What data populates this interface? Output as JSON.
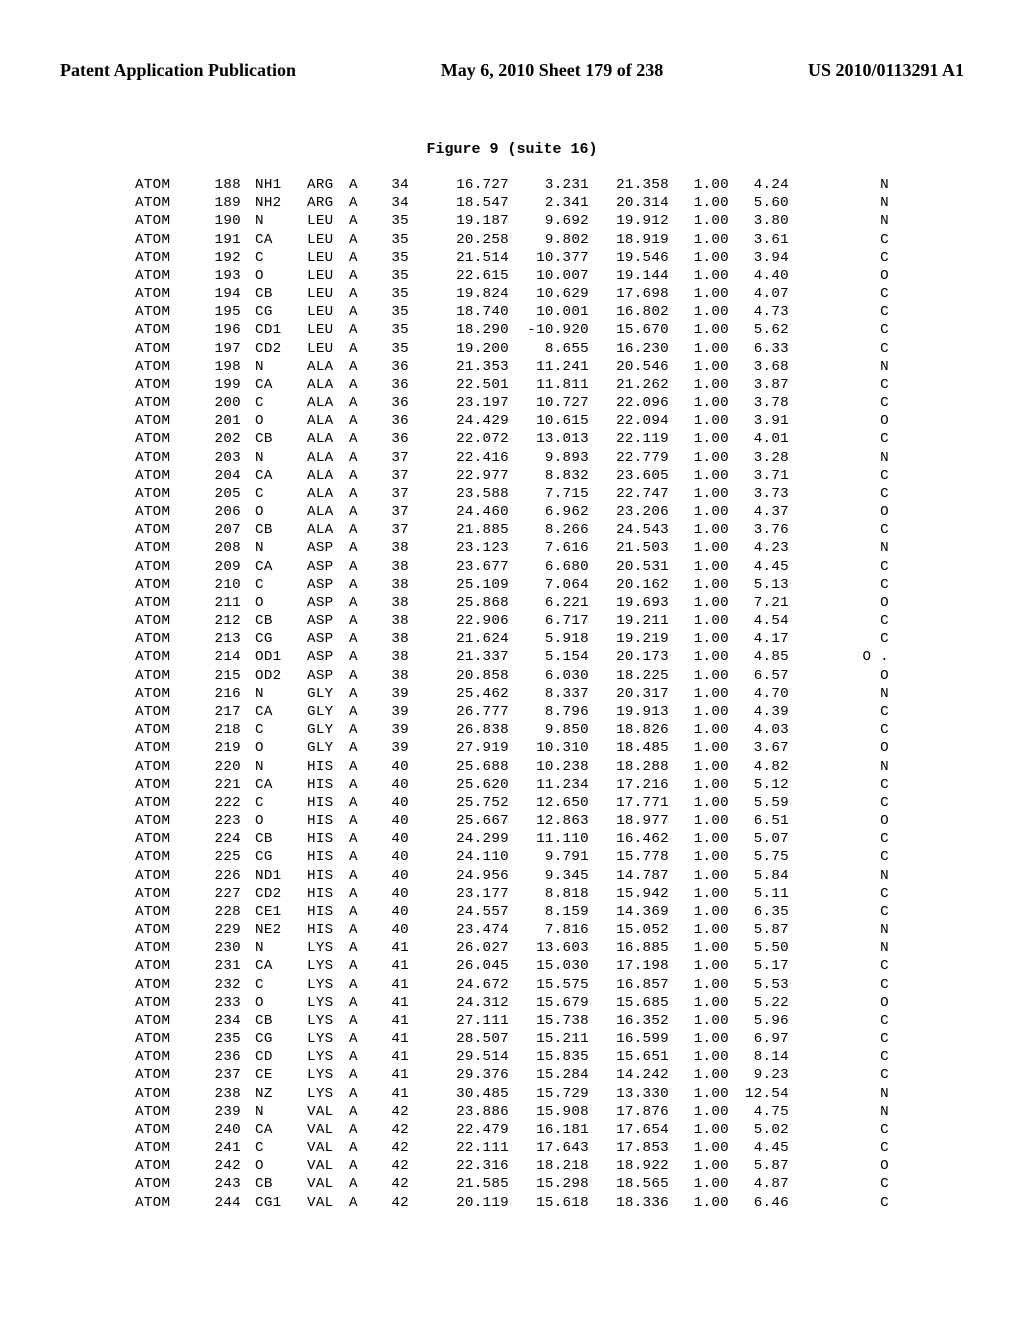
{
  "header": {
    "left": "Patent Application Publication",
    "center": "May 6, 2010  Sheet 179 of 238",
    "right": "US 2010/0113291 A1"
  },
  "figure_title": "Figure 9 (suite 16)",
  "columns": [
    "rec",
    "ser",
    "atom",
    "res",
    "chain",
    "seq",
    "x",
    "y",
    "z",
    "occ",
    "temp",
    "elem"
  ],
  "style": {
    "font_family_body": "Times New Roman",
    "font_family_data": "Courier New",
    "header_fontsize": 18,
    "title_fontsize": 15,
    "data_fontsize": 14.2,
    "line_height": 1.28,
    "background_color": "#ffffff",
    "text_color": "#000000"
  },
  "atoms": [
    [
      "ATOM",
      "188",
      "NH1",
      "ARG",
      "A",
      "34",
      "16.727",
      "3.231",
      "21.358",
      "1.00",
      "4.24",
      "N"
    ],
    [
      "ATOM",
      "189",
      "NH2",
      "ARG",
      "A",
      "34",
      "18.547",
      "2.341",
      "20.314",
      "1.00",
      "5.60",
      "N"
    ],
    [
      "ATOM",
      "190",
      "N",
      "LEU",
      "A",
      "35",
      "19.187",
      "9.692",
      "19.912",
      "1.00",
      "3.80",
      "N"
    ],
    [
      "ATOM",
      "191",
      "CA",
      "LEU",
      "A",
      "35",
      "20.258",
      "9.802",
      "18.919",
      "1.00",
      "3.61",
      "C"
    ],
    [
      "ATOM",
      "192",
      "C",
      "LEU",
      "A",
      "35",
      "21.514",
      "10.377",
      "19.546",
      "1.00",
      "3.94",
      "C"
    ],
    [
      "ATOM",
      "193",
      "O",
      "LEU",
      "A",
      "35",
      "22.615",
      "10.007",
      "19.144",
      "1.00",
      "4.40",
      "O"
    ],
    [
      "ATOM",
      "194",
      "CB",
      "LEU",
      "A",
      "35",
      "19.824",
      "10.629",
      "17.698",
      "1.00",
      "4.07",
      "C"
    ],
    [
      "ATOM",
      "195",
      "CG",
      "LEU",
      "A",
      "35",
      "18.740",
      "10.001",
      "16.802",
      "1.00",
      "4.73",
      "C"
    ],
    [
      "ATOM",
      "196",
      "CD1",
      "LEU",
      "A",
      "35",
      "18.290",
      "-10.920",
      "15.670",
      "1.00",
      "5.62",
      "C"
    ],
    [
      "ATOM",
      "197",
      "CD2",
      "LEU",
      "A",
      "35",
      "19.200",
      "8.655",
      "16.230",
      "1.00",
      "6.33",
      "C"
    ],
    [
      "ATOM",
      "198",
      "N",
      "ALA",
      "A",
      "36",
      "21.353",
      "11.241",
      "20.546",
      "1.00",
      "3.68",
      "N"
    ],
    [
      "ATOM",
      "199",
      "CA",
      "ALA",
      "A",
      "36",
      "22.501",
      "11.811",
      "21.262",
      "1.00",
      "3.87",
      "C"
    ],
    [
      "ATOM",
      "200",
      "C",
      "ALA",
      "A",
      "36",
      "23.197",
      "10.727",
      "22.096",
      "1.00",
      "3.78",
      "C"
    ],
    [
      "ATOM",
      "201",
      "O",
      "ALA",
      "A",
      "36",
      "24.429",
      "10.615",
      "22.094",
      "1.00",
      "3.91",
      "O"
    ],
    [
      "ATOM",
      "202",
      "CB",
      "ALA",
      "A",
      "36",
      "22.072",
      "13.013",
      "22.119",
      "1.00",
      "4.01",
      "C"
    ],
    [
      "ATOM",
      "203",
      "N",
      "ALA",
      "A",
      "37",
      "22.416",
      "9.893",
      "22.779",
      "1.00",
      "3.28",
      "N"
    ],
    [
      "ATOM",
      "204",
      "CA",
      "ALA",
      "A",
      "37",
      "22.977",
      "8.832",
      "23.605",
      "1.00",
      "3.71",
      "C"
    ],
    [
      "ATOM",
      "205",
      "C",
      "ALA",
      "A",
      "37",
      "23.588",
      "7.715",
      "22.747",
      "1.00",
      "3.73",
      "C"
    ],
    [
      "ATOM",
      "206",
      "O",
      "ALA",
      "A",
      "37",
      "24.460",
      "6.962",
      "23.206",
      "1.00",
      "4.37",
      "O"
    ],
    [
      "ATOM",
      "207",
      "CB",
      "ALA",
      "A",
      "37",
      "21.885",
      "8.266",
      "24.543",
      "1.00",
      "3.76",
      "C"
    ],
    [
      "ATOM",
      "208",
      "N",
      "ASP",
      "A",
      "38",
      "23.123",
      "7.616",
      "21.503",
      "1.00",
      "4.23",
      "N"
    ],
    [
      "ATOM",
      "209",
      "CA",
      "ASP",
      "A",
      "38",
      "23.677",
      "6.680",
      "20.531",
      "1.00",
      "4.45",
      "C"
    ],
    [
      "ATOM",
      "210",
      "C",
      "ASP",
      "A",
      "38",
      "25.109",
      "7.064",
      "20.162",
      "1.00",
      "5.13",
      "C"
    ],
    [
      "ATOM",
      "211",
      "O",
      "ASP",
      "A",
      "38",
      "25.868",
      "6.221",
      "19.693",
      "1.00",
      "7.21",
      "O"
    ],
    [
      "ATOM",
      "212",
      "CB",
      "ASP",
      "A",
      "38",
      "22.906",
      "6.717",
      "19.211",
      "1.00",
      "4.54",
      "C"
    ],
    [
      "ATOM",
      "213",
      "CG",
      "ASP",
      "A",
      "38",
      "21.624",
      "5.918",
      "19.219",
      "1.00",
      "4.17",
      "C"
    ],
    [
      "ATOM",
      "214",
      "OD1",
      "ASP",
      "A",
      "38",
      "21.337",
      "5.154",
      "20.173",
      "1.00",
      "4.85",
      "O ."
    ],
    [
      "ATOM",
      "215",
      "OD2",
      "ASP",
      "A",
      "38",
      "20.858",
      "6.030",
      "18.225",
      "1.00",
      "6.57",
      "O"
    ],
    [
      "ATOM",
      "216",
      "N",
      "GLY",
      "A",
      "39",
      "25.462",
      "8.337",
      "20.317",
      "1.00",
      "4.70",
      "N"
    ],
    [
      "ATOM",
      "217",
      "CA",
      "GLY",
      "A",
      "39",
      "26.777",
      "8.796",
      "19.913",
      "1.00",
      "4.39",
      "C"
    ],
    [
      "ATOM",
      "218",
      "C",
      "GLY",
      "A",
      "39",
      "26.838",
      "9.850",
      "18.826",
      "1.00",
      "4.03",
      "C"
    ],
    [
      "ATOM",
      "219",
      "O",
      "GLY",
      "A",
      "39",
      "27.919",
      "10.310",
      "18.485",
      "1.00",
      "3.67",
      "O"
    ],
    [
      "ATOM",
      "220",
      "N",
      "HIS",
      "A",
      "40",
      "25.688",
      "10.238",
      "18.288",
      "1.00",
      "4.82",
      "N"
    ],
    [
      "ATOM",
      "221",
      "CA",
      "HIS",
      "A",
      "40",
      "25.620",
      "11.234",
      "17.216",
      "1.00",
      "5.12",
      "C"
    ],
    [
      "ATOM",
      "222",
      "C",
      "HIS",
      "A",
      "40",
      "25.752",
      "12.650",
      "17.771",
      "1.00",
      "5.59",
      "C"
    ],
    [
      "ATOM",
      "223",
      "O",
      "HIS",
      "A",
      "40",
      "25.667",
      "12.863",
      "18.977",
      "1.00",
      "6.51",
      "O"
    ],
    [
      "ATOM",
      "224",
      "CB",
      "HIS",
      "A",
      "40",
      "24.299",
      "11.110",
      "16.462",
      "1.00",
      "5.07",
      "C"
    ],
    [
      "ATOM",
      "225",
      "CG",
      "HIS",
      "A",
      "40",
      "24.110",
      "9.791",
      "15.778",
      "1.00",
      "5.75",
      "C"
    ],
    [
      "ATOM",
      "226",
      "ND1",
      "HIS",
      "A",
      "40",
      "24.956",
      "9.345",
      "14.787",
      "1.00",
      "5.84",
      "N"
    ],
    [
      "ATOM",
      "227",
      "CD2",
      "HIS",
      "A",
      "40",
      "23.177",
      "8.818",
      "15.942",
      "1.00",
      "5.11",
      "C"
    ],
    [
      "ATOM",
      "228",
      "CE1",
      "HIS",
      "A",
      "40",
      "24.557",
      "8.159",
      "14.369",
      "1.00",
      "6.35",
      "C"
    ],
    [
      "ATOM",
      "229",
      "NE2",
      "HIS",
      "A",
      "40",
      "23.474",
      "7.816",
      "15.052",
      "1.00",
      "5.87",
      "N"
    ],
    [
      "ATOM",
      "230",
      "N",
      "LYS",
      "A",
      "41",
      "26.027",
      "13.603",
      "16.885",
      "1.00",
      "5.50",
      "N"
    ],
    [
      "ATOM",
      "231",
      "CA",
      "LYS",
      "A",
      "41",
      "26.045",
      "15.030",
      "17.198",
      "1.00",
      "5.17",
      "C"
    ],
    [
      "ATOM",
      "232",
      "C",
      "LYS",
      "A",
      "41",
      "24.672",
      "15.575",
      "16.857",
      "1.00",
      "5.53",
      "C"
    ],
    [
      "ATOM",
      "233",
      "O",
      "LYS",
      "A",
      "41",
      "24.312",
      "15.679",
      "15.685",
      "1.00",
      "5.22",
      "O"
    ],
    [
      "ATOM",
      "234",
      "CB",
      "LYS",
      "A",
      "41",
      "27.111",
      "15.738",
      "16.352",
      "1.00",
      "5.96",
      "C"
    ],
    [
      "ATOM",
      "235",
      "CG",
      "LYS",
      "A",
      "41",
      "28.507",
      "15.211",
      "16.599",
      "1.00",
      "6.97",
      "C"
    ],
    [
      "ATOM",
      "236",
      "CD",
      "LYS",
      "A",
      "41",
      "29.514",
      "15.835",
      "15.651",
      "1.00",
      "8.14",
      "C"
    ],
    [
      "ATOM",
      "237",
      "CE",
      "LYS",
      "A",
      "41",
      "29.376",
      "15.284",
      "14.242",
      "1.00",
      "9.23",
      "C"
    ],
    [
      "ATOM",
      "238",
      "NZ",
      "LYS",
      "A",
      "41",
      "30.485",
      "15.729",
      "13.330",
      "1.00",
      "12.54",
      "N"
    ],
    [
      "ATOM",
      "239",
      "N",
      "VAL",
      "A",
      "42",
      "23.886",
      "15.908",
      "17.876",
      "1.00",
      "4.75",
      "N"
    ],
    [
      "ATOM",
      "240",
      "CA",
      "VAL",
      "A",
      "42",
      "22.479",
      "16.181",
      "17.654",
      "1.00",
      "5.02",
      "C"
    ],
    [
      "ATOM",
      "241",
      "C",
      "VAL",
      "A",
      "42",
      "22.111",
      "17.643",
      "17.853",
      "1.00",
      "4.45",
      "C"
    ],
    [
      "ATOM",
      "242",
      "O",
      "VAL",
      "A",
      "42",
      "22.316",
      "18.218",
      "18.922",
      "1.00",
      "5.87",
      "O"
    ],
    [
      "ATOM",
      "243",
      "CB",
      "VAL",
      "A",
      "42",
      "21.585",
      "15.298",
      "18.565",
      "1.00",
      "4.87",
      "C"
    ],
    [
      "ATOM",
      "244",
      "CG1",
      "VAL",
      "A",
      "42",
      "20.119",
      "15.618",
      "18.336",
      "1.00",
      "6.46",
      "C"
    ]
  ]
}
